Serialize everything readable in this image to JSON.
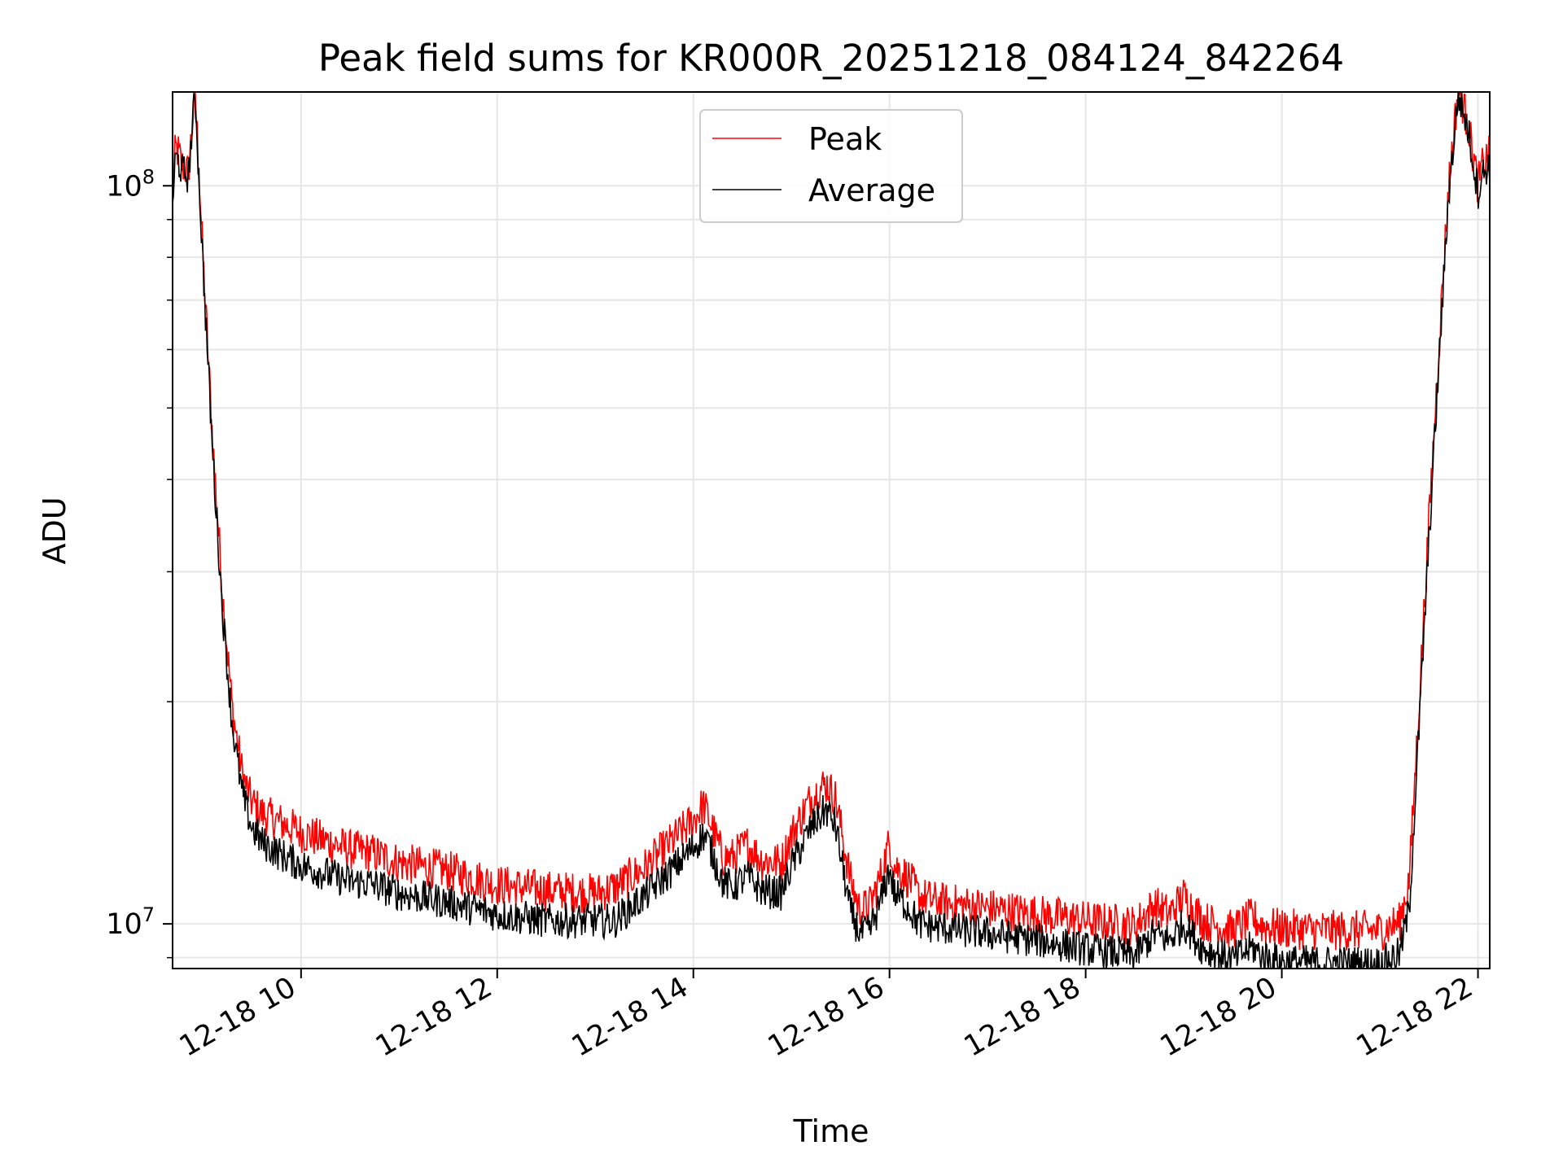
{
  "chart_data": {
    "type": "line",
    "title": "Peak field sums for KR000R_20251218_084124_842264",
    "xlabel": "Time",
    "ylabel": "ADU",
    "yscale": "log",
    "ylim": [
      8700000,
      134000000
    ],
    "xlim_hours": [
      8.69,
      22.12
    ],
    "grid": true,
    "x_ticks": [
      {
        "hour": 10,
        "label": "12-18 10"
      },
      {
        "hour": 12,
        "label": "12-18 12"
      },
      {
        "hour": 14,
        "label": "12-18 14"
      },
      {
        "hour": 16,
        "label": "12-18 16"
      },
      {
        "hour": 18,
        "label": "12-18 18"
      },
      {
        "hour": 20,
        "label": "12-18 20"
      },
      {
        "hour": 22,
        "label": "12-18 22"
      }
    ],
    "y_major_ticks": [
      {
        "value": 10000000,
        "base": "10",
        "exp": "7"
      },
      {
        "value": 100000000,
        "base": "10",
        "exp": "8"
      }
    ],
    "y_minor_ticks": [
      9000000,
      20000000,
      30000000,
      40000000,
      50000000,
      60000000,
      70000000,
      80000000,
      90000000
    ],
    "legend": {
      "position": "upper-center",
      "entries": [
        "Peak",
        "Average"
      ]
    },
    "series": [
      {
        "name": "Peak",
        "color": "#ff0000",
        "x": [
          8.69,
          8.72,
          8.75,
          8.78,
          8.85,
          8.92,
          9.0,
          9.1,
          9.2,
          9.3,
          9.4,
          9.45,
          9.5,
          9.6,
          9.8,
          10.0,
          10.5,
          10.7,
          11.0,
          11.5,
          12.0,
          12.5,
          13.0,
          13.2,
          13.5,
          13.8,
          14.0,
          14.1,
          14.15,
          14.3,
          14.4,
          14.55,
          14.7,
          14.9,
          15.0,
          15.2,
          15.35,
          15.45,
          15.6,
          15.7,
          15.8,
          15.9,
          16.0,
          16.05,
          16.2,
          16.3,
          16.5,
          17.0,
          17.5,
          18.0,
          18.5,
          18.7,
          18.85,
          19.0,
          19.2,
          19.5,
          19.7,
          19.8,
          20.0,
          20.5,
          21.0,
          21.2,
          21.3,
          21.4,
          21.5,
          21.6,
          21.7,
          21.8,
          21.9,
          22.0,
          22.05,
          22.12
        ],
        "values": [
          100000000,
          112000000,
          111000000,
          107000000,
          104000000,
          135000000,
          80000000,
          45000000,
          28000000,
          19500000,
          16000000,
          15200000,
          14600000,
          14100000,
          13700000,
          13300000,
          12600000,
          12500000,
          12100000,
          11800000,
          11300000,
          11100000,
          11000000,
          11200000,
          11900000,
          13000000,
          13800000,
          14500000,
          14000000,
          12300000,
          12300000,
          12800000,
          12200000,
          12100000,
          13200000,
          14800000,
          15500000,
          14800000,
          11500000,
          10400000,
          10600000,
          11500000,
          12900000,
          12000000,
          11500000,
          10900000,
          10700000,
          10500000,
          10300000,
          10100000,
          9950000,
          10600000,
          10300000,
          10900000,
          10100000,
          9800000,
          10200000,
          9950000,
          9850000,
          9800000,
          9800000,
          10050000,
          11500000,
          20000000,
          35000000,
          60000000,
          100000000,
          136000000,
          121000000,
          100000000,
          107000000,
          110000000
        ]
      },
      {
        "name": "Average",
        "color": "#000000",
        "x": [
          8.69,
          8.72,
          8.75,
          8.78,
          8.85,
          8.92,
          9.0,
          9.1,
          9.2,
          9.3,
          9.4,
          9.45,
          9.5,
          9.6,
          9.8,
          10.0,
          10.5,
          10.7,
          11.0,
          11.5,
          12.0,
          12.5,
          13.0,
          13.2,
          13.5,
          13.8,
          14.0,
          14.1,
          14.15,
          14.3,
          14.4,
          14.55,
          14.7,
          14.9,
          15.0,
          15.2,
          15.35,
          15.45,
          15.6,
          15.7,
          15.8,
          15.9,
          16.0,
          16.05,
          16.2,
          16.3,
          16.5,
          17.0,
          17.5,
          18.0,
          18.5,
          18.7,
          18.85,
          19.0,
          19.2,
          19.5,
          19.7,
          19.8,
          20.0,
          20.5,
          21.0,
          21.2,
          21.3,
          21.4,
          21.5,
          21.6,
          21.7,
          21.8,
          21.9,
          22.0,
          22.05,
          22.12
        ],
        "values": [
          95000000,
          109000000,
          108000000,
          105000000,
          103000000,
          133000000,
          78000000,
          43000000,
          26500000,
          18500000,
          15000000,
          14200000,
          13500000,
          12900000,
          12400000,
          12000000,
          11400000,
          11350000,
          11000000,
          10700000,
          10300000,
          10100000,
          10100000,
          10100000,
          10900000,
          11900000,
          12700000,
          13200000,
          12900000,
          11400000,
          11200000,
          11600000,
          11100000,
          11000000,
          12000000,
          13500000,
          14300000,
          13600000,
          10400000,
          9700000,
          9800000,
          10600000,
          11900000,
          11000000,
          10500000,
          10000000,
          9900000,
          9700000,
          9500000,
          9250000,
          9050000,
          9700000,
          9500000,
          10000000,
          9250000,
          8950000,
          9300000,
          9050000,
          8900000,
          8850000,
          8850000,
          9100000,
          10500000,
          18500000,
          33000000,
          57000000,
          97000000,
          133000000,
          119000000,
          98000000,
          104000000,
          107000000
        ]
      }
    ]
  }
}
